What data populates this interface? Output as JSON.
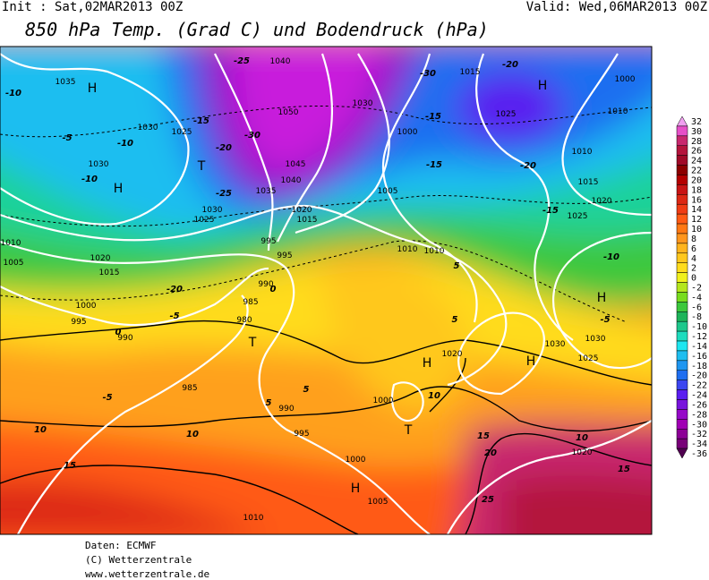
{
  "header": {
    "init": "Init : Sat,02MAR2013 00Z",
    "valid": "Valid: Wed,06MAR2013 00Z",
    "title": "850 hPa Temp. (Grad C) und Bodendruck (hPa)"
  },
  "legend": {
    "levels": [
      32,
      30,
      28,
      26,
      24,
      22,
      20,
      18,
      16,
      14,
      12,
      10,
      8,
      6,
      4,
      2,
      0,
      -2,
      -4,
      -6,
      -8,
      -10,
      -12,
      -14,
      -16,
      -18,
      -20,
      -22,
      -24,
      -26,
      -28,
      -30,
      -32,
      -34,
      -36
    ],
    "colors": [
      "#f0a0f0",
      "#e650c8",
      "#c8286e",
      "#b4143c",
      "#a00a28",
      "#8c0000",
      "#b40000",
      "#c81414",
      "#dc2814",
      "#f03c14",
      "#ff5a14",
      "#ff7814",
      "#ff961e",
      "#ffb41e",
      "#ffc81e",
      "#ffdc1e",
      "#f0f01e",
      "#b4e61e",
      "#78dc1e",
      "#3cc83c",
      "#1eb45a",
      "#1ec88c",
      "#1edcbe",
      "#1ee6f0",
      "#1ebef0",
      "#1e96f0",
      "#1e6ef0",
      "#3c46f0",
      "#5a1ef0",
      "#7814dc",
      "#960ac8",
      "#a000b4",
      "#8c0096",
      "#780078",
      "#500050"
    ]
  },
  "map": {
    "labels": [
      "1035",
      "H",
      "-10",
      "1030",
      "-5",
      "-10",
      "1030",
      "-10",
      "H",
      "1025",
      "-15",
      "-20",
      "T",
      "1040",
      "-25",
      "1050",
      "-30",
      "1045",
      "1040",
      "1035",
      "-25",
      "1030",
      "1025",
      "1020",
      "1015",
      "995",
      "995",
      "-20",
      "1030",
      "1000",
      "-15",
      "-15",
      "1005",
      "1010",
      "1010",
      "1015",
      "-30",
      "-20",
      "H",
      "1025",
      "1000",
      "1010",
      "1010",
      "-20",
      "1015",
      "1020",
      "-15",
      "1025",
      "-10",
      "H",
      "-5",
      "1030",
      "1025",
      "H",
      "1030",
      "1020",
      "H",
      "1005",
      "1020",
      "1015",
      "1000",
      "995",
      "990",
      "990",
      "985",
      "980",
      "T",
      "985",
      "990",
      "995",
      "1000",
      "1005",
      "H",
      "1010",
      "T",
      "1000",
      "10",
      "15",
      "20",
      "25",
      "1020",
      "10",
      "15",
      "10",
      "10",
      "15",
      "-5",
      "0",
      "5",
      "5",
      "-5",
      "0",
      "5",
      "5",
      "1010"
    ]
  },
  "footer": {
    "source": "Daten: ECMWF",
    "copyright": "(C) Wetterzentrale",
    "url": "www.wetterzentrale.de"
  }
}
